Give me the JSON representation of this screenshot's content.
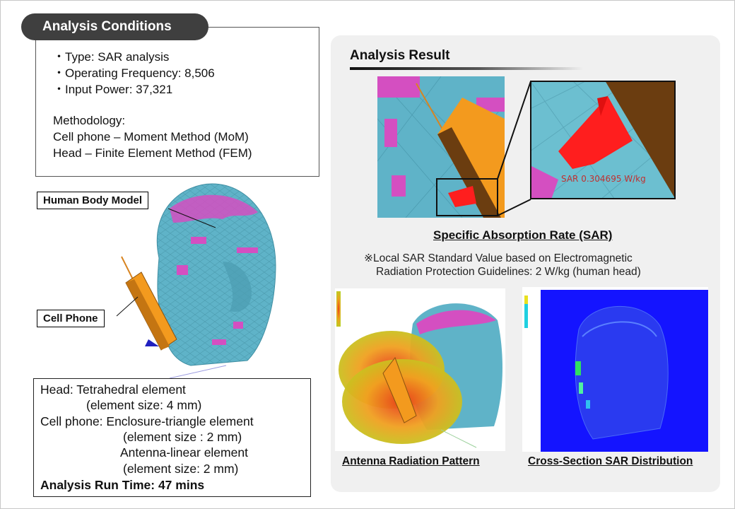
{
  "conditions": {
    "title": "Analysis Conditions",
    "items": [
      "・Type: SAR analysis",
      "・Operating Frequency: 8,506",
      "・Input Power: 37,321"
    ],
    "methodology_title": "Methodology:",
    "methodology": [
      "Cell phone – Moment Method (MoM)",
      "Head – Finite Element Method (FEM)"
    ]
  },
  "labels": {
    "human_body_model": "Human Body Model",
    "cell_phone": "Cell Phone"
  },
  "mesh": {
    "head": "Head: Tetrahedral element",
    "head_size": "(element size: 4 mm)",
    "cellphone": "Cell phone: Enclosure-triangle element",
    "cellphone_size": "(element size : 2 mm)",
    "antenna": "Antenna-linear element",
    "antenna_size": "(element size: 2 mm)",
    "runtime": "Analysis Run Time: 47 mins"
  },
  "result": {
    "title": "Analysis Result",
    "sar_caption": "Specific Absorption Rate (SAR)",
    "sar_readout": "SAR 0.304695 W/kg",
    "note_line1": "※Local SAR Standard Value based on Electromagnetic",
    "note_line2": "Radiation Protection Guidelines: 2 W/kg (human head)",
    "pattern_caption": "Antenna Radiation Pattern",
    "cross_caption": "Cross-Section SAR Distribution"
  },
  "colors": {
    "mesh_cyan": "#5fb3c8",
    "mesh_magenta": "#d44fc1",
    "phone_orange": "#f39a1e",
    "sar_red": "#ff1e1e",
    "sar_blue": "#1414ff"
  }
}
